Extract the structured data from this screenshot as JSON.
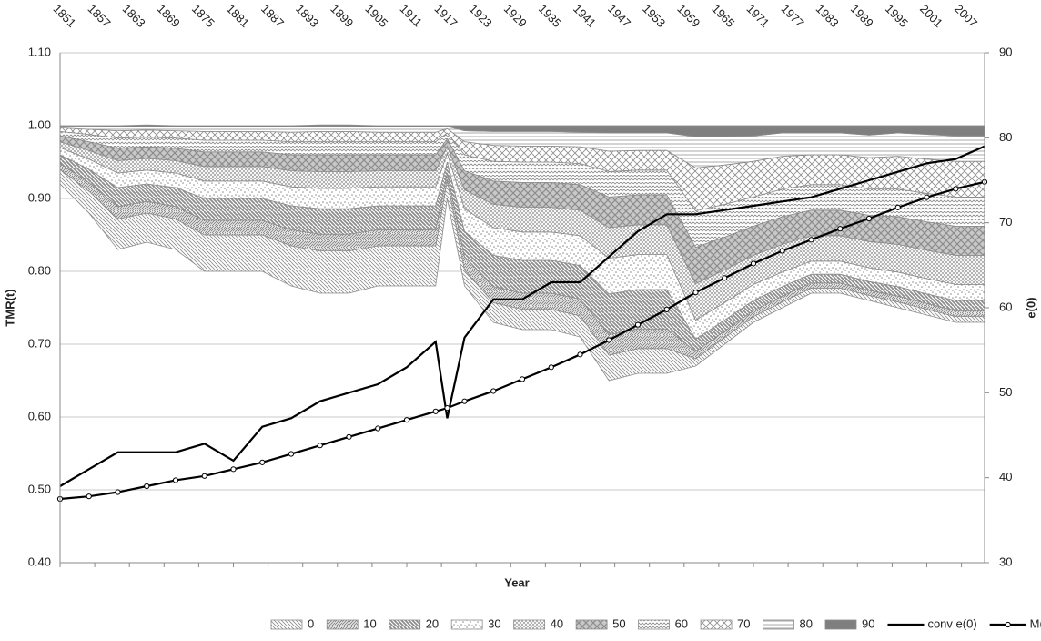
{
  "chart_data": {
    "type": "combo",
    "xlabel": "Year",
    "ylabel": "TMR(t)",
    "y2label": "e(0)",
    "grid": true,
    "x": [
      1851,
      1856,
      1861,
      1866,
      1871,
      1876,
      1881,
      1886,
      1891,
      1896,
      1901,
      1906,
      1911,
      1916,
      1918,
      1921,
      1926,
      1931,
      1936,
      1941,
      1946,
      1951,
      1956,
      1961,
      1966,
      1971,
      1976,
      1981,
      1986,
      1991,
      1996,
      2001,
      2006,
      2011
    ],
    "base": [
      0.92,
      0.88,
      0.83,
      0.84,
      0.83,
      0.8,
      0.8,
      0.8,
      0.78,
      0.77,
      0.77,
      0.78,
      0.78,
      0.78,
      0.9,
      0.78,
      0.73,
      0.72,
      0.72,
      0.71,
      0.65,
      0.66,
      0.66,
      0.67,
      0.7,
      0.73,
      0.75,
      0.77,
      0.77,
      0.76,
      0.75,
      0.74,
      0.73,
      0.73
    ],
    "xlim": [
      1851,
      2011
    ],
    "xticks": [
      1851,
      1857,
      1863,
      1869,
      1875,
      1881,
      1887,
      1893,
      1899,
      1905,
      1911,
      1917,
      1923,
      1929,
      1935,
      1941,
      1947,
      1953,
      1959,
      1965,
      1971,
      1977,
      1983,
      1989,
      1995,
      2001,
      2007
    ],
    "ylim": [
      0.4,
      1.1
    ],
    "yticks": [
      {
        "value": 0.4,
        "label": "0.40"
      },
      {
        "value": 0.5,
        "label": "0.50"
      },
      {
        "value": 0.6,
        "label": "0.60"
      },
      {
        "value": 0.7,
        "label": "0.70"
      },
      {
        "value": 0.8,
        "label": "0.80"
      },
      {
        "value": 0.9,
        "label": "0.90"
      },
      {
        "value": 1.0,
        "label": "1.00"
      },
      {
        "value": 1.1,
        "label": "1.10"
      }
    ],
    "y2lim": [
      30,
      90
    ],
    "y2ticks": [
      30,
      40,
      50,
      60,
      70,
      80,
      90
    ],
    "series": [
      {
        "name": "0",
        "type": "area",
        "color": "#8c8c8c",
        "values": [
          0.02,
          0.03,
          0.042,
          0.04,
          0.042,
          0.05,
          0.05,
          0.05,
          0.055,
          0.058,
          0.058,
          0.055,
          0.055,
          0.055,
          0.025,
          0.022,
          0.027,
          0.028,
          0.028,
          0.029,
          0.035,
          0.034,
          0.034,
          0.01,
          0.009,
          0.008,
          0.008,
          0.007,
          0.007,
          0.007,
          0.008,
          0.008,
          0.008,
          0.008
        ]
      },
      {
        "name": "10",
        "type": "area",
        "color": "#8c8c8c",
        "values": [
          0.008,
          0.012,
          0.017,
          0.016,
          0.017,
          0.02,
          0.02,
          0.02,
          0.022,
          0.023,
          0.023,
          0.022,
          0.022,
          0.022,
          0.01,
          0.018,
          0.022,
          0.022,
          0.022,
          0.023,
          0.028,
          0.027,
          0.027,
          0.01,
          0.009,
          0.008,
          0.008,
          0.007,
          0.007,
          0.007,
          0.008,
          0.008,
          0.008,
          0.008
        ]
      },
      {
        "name": "20",
        "type": "area",
        "color": "#8c8c8c",
        "values": [
          0.012,
          0.018,
          0.026,
          0.024,
          0.026,
          0.03,
          0.03,
          0.03,
          0.033,
          0.035,
          0.035,
          0.033,
          0.033,
          0.033,
          0.015,
          0.035,
          0.043,
          0.045,
          0.045,
          0.046,
          0.056,
          0.054,
          0.054,
          0.017,
          0.015,
          0.014,
          0.013,
          0.012,
          0.012,
          0.012,
          0.013,
          0.013,
          0.014,
          0.014
        ]
      },
      {
        "name": "30",
        "type": "area",
        "color": "#8c8c8c",
        "values": [
          0.01,
          0.014,
          0.02,
          0.019,
          0.02,
          0.024,
          0.024,
          0.024,
          0.026,
          0.028,
          0.028,
          0.026,
          0.026,
          0.026,
          0.012,
          0.031,
          0.038,
          0.039,
          0.039,
          0.041,
          0.049,
          0.048,
          0.048,
          0.026,
          0.024,
          0.022,
          0.02,
          0.018,
          0.018,
          0.019,
          0.02,
          0.021,
          0.022,
          0.022
        ]
      },
      {
        "name": "40",
        "type": "area",
        "color": "#8c8c8c",
        "values": [
          0.008,
          0.012,
          0.017,
          0.016,
          0.017,
          0.02,
          0.02,
          0.02,
          0.022,
          0.023,
          0.023,
          0.022,
          0.022,
          0.022,
          0.01,
          0.026,
          0.032,
          0.034,
          0.034,
          0.035,
          0.042,
          0.041,
          0.041,
          0.05,
          0.045,
          0.04,
          0.038,
          0.035,
          0.035,
          0.036,
          0.038,
          0.039,
          0.04,
          0.04
        ]
      },
      {
        "name": "50",
        "type": "area",
        "color": "#8c8c8c",
        "values": [
          0.008,
          0.012,
          0.017,
          0.016,
          0.017,
          0.02,
          0.02,
          0.02,
          0.022,
          0.023,
          0.023,
          0.022,
          0.022,
          0.022,
          0.01,
          0.026,
          0.032,
          0.034,
          0.034,
          0.035,
          0.042,
          0.041,
          0.041,
          0.05,
          0.045,
          0.04,
          0.038,
          0.035,
          0.035,
          0.036,
          0.038,
          0.039,
          0.04,
          0.04
        ]
      },
      {
        "name": "60",
        "type": "area",
        "color": "#8c8c8c",
        "values": [
          0.006,
          0.01,
          0.014,
          0.013,
          0.014,
          0.016,
          0.016,
          0.016,
          0.018,
          0.018,
          0.018,
          0.018,
          0.018,
          0.018,
          0.008,
          0.022,
          0.027,
          0.028,
          0.028,
          0.029,
          0.035,
          0.034,
          0.034,
          0.05,
          0.045,
          0.04,
          0.038,
          0.035,
          0.035,
          0.036,
          0.038,
          0.039,
          0.04,
          0.04
        ]
      },
      {
        "name": "70",
        "type": "area",
        "color": "#8c8c8c",
        "values": [
          0.005,
          0.007,
          0.01,
          0.01,
          0.01,
          0.012,
          0.012,
          0.012,
          0.013,
          0.014,
          0.014,
          0.013,
          0.013,
          0.013,
          0.006,
          0.018,
          0.022,
          0.022,
          0.022,
          0.023,
          0.028,
          0.027,
          0.027,
          0.059,
          0.054,
          0.049,
          0.045,
          0.041,
          0.041,
          0.043,
          0.045,
          0.047,
          0.049,
          0.049
        ]
      },
      {
        "name": "80",
        "type": "area",
        "color": "#8c8c8c",
        "values": [
          0.002,
          0.004,
          0.005,
          0.005,
          0.005,
          0.006,
          0.006,
          0.006,
          0.007,
          0.007,
          0.007,
          0.007,
          0.007,
          0.007,
          0.003,
          0.015,
          0.019,
          0.02,
          0.02,
          0.02,
          0.025,
          0.024,
          0.024,
          0.043,
          0.039,
          0.035,
          0.032,
          0.03,
          0.03,
          0.031,
          0.032,
          0.034,
          0.035,
          0.035
        ]
      },
      {
        "name": "90",
        "type": "area",
        "color": "#7f7f7f",
        "values": [
          0.001,
          0.001,
          0.002,
          0.002,
          0.002,
          0.002,
          0.002,
          0.002,
          0.002,
          0.002,
          0.002,
          0.002,
          0.002,
          0.002,
          0.001,
          0.007,
          0.008,
          0.008,
          0.008,
          0.009,
          0.01,
          0.01,
          0.01,
          0.015,
          0.015,
          0.014,
          0.01,
          0.01,
          0.01,
          0.013,
          0.01,
          0.012,
          0.014,
          0.014
        ]
      },
      {
        "name": "conv e(0)",
        "type": "line",
        "axis": "y2",
        "color": "#000000",
        "values": [
          39,
          41,
          43,
          43,
          43,
          44,
          42,
          46,
          47,
          49,
          50,
          51,
          53,
          56,
          47,
          56.5,
          61,
          61,
          63,
          63,
          66,
          69,
          71,
          71,
          71.5,
          72,
          72.5,
          73,
          74,
          75,
          76,
          77,
          77.5,
          79
        ]
      },
      {
        "name": "M(t)*",
        "type": "line",
        "axis": "y2",
        "color": "#000000",
        "marker": "circle",
        "values": [
          37.5,
          37.8,
          38.3,
          39,
          39.7,
          40.2,
          41,
          41.8,
          42.8,
          43.8,
          44.8,
          45.8,
          46.8,
          47.8,
          48.2,
          49,
          50.2,
          51.6,
          53,
          54.5,
          56.2,
          58,
          59.8,
          61.8,
          63.5,
          65.2,
          66.7,
          68,
          69.3,
          70.5,
          71.8,
          73,
          74,
          74.8
        ]
      }
    ]
  }
}
